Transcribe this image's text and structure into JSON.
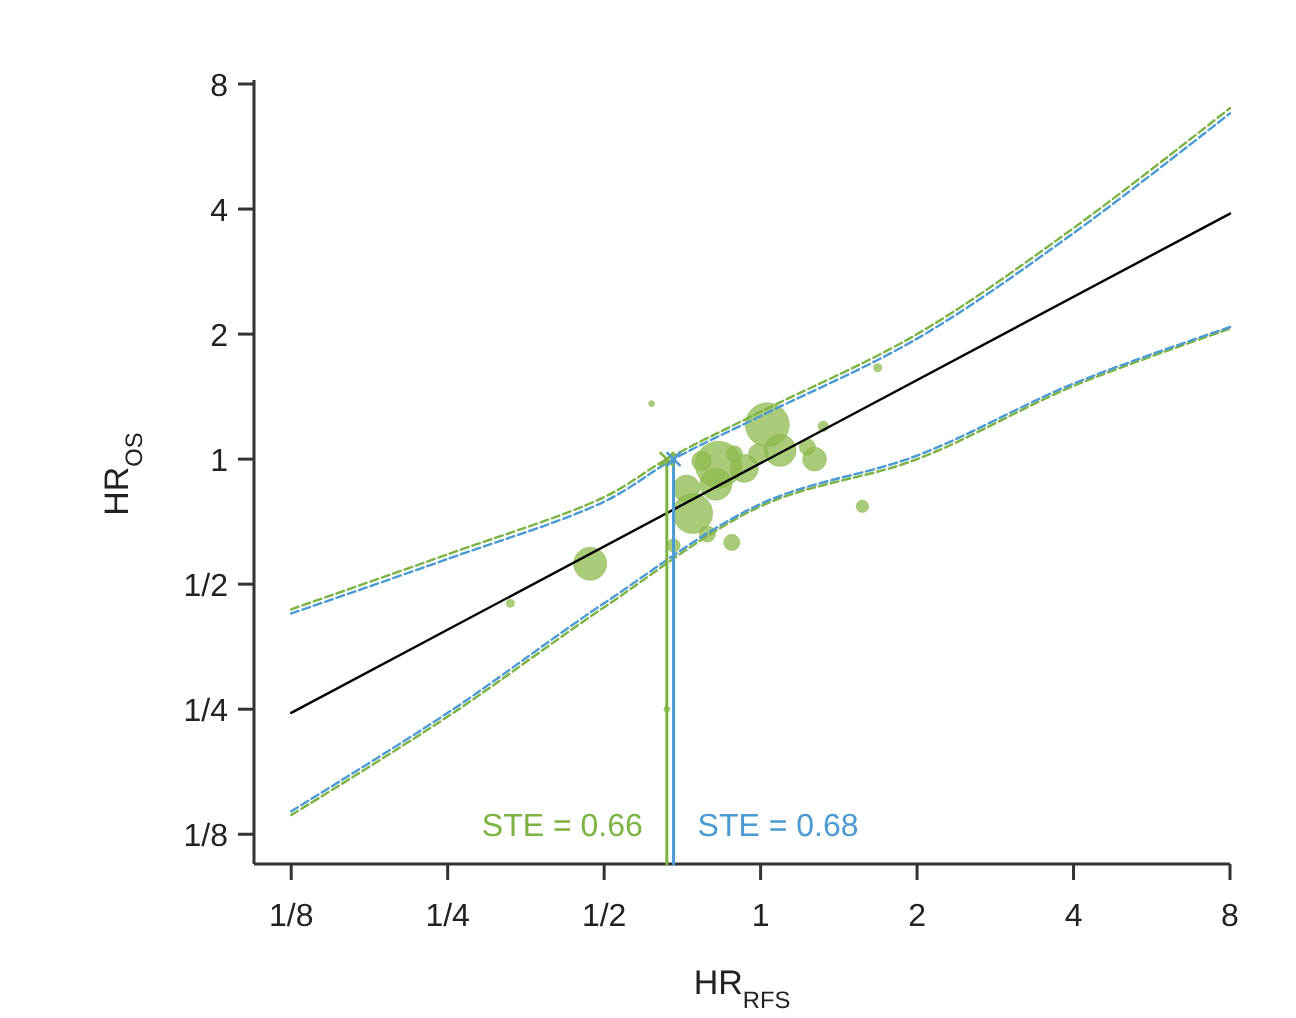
{
  "chart_data": {
    "type": "bubble",
    "xlabel": "HR$_{RFS}$",
    "ylabel": "HR$_{OS}$",
    "log": "xy",
    "grid": false,
    "xlim": [
      0.106,
      8
    ],
    "ylim": [
      0.106,
      8
    ],
    "xticks": [
      {
        "value": 0.125,
        "label": "1/8"
      },
      {
        "value": 0.25,
        "label": "1/4"
      },
      {
        "value": 0.5,
        "label": "1/2"
      },
      1,
      2,
      4,
      8
    ],
    "yticks": [
      {
        "value": 0.125,
        "label": "1/8"
      },
      {
        "value": 0.25,
        "label": "1/4"
      },
      {
        "value": 0.5,
        "label": "1/2"
      },
      1,
      2,
      4,
      8
    ],
    "series": [
      {
        "color": "#8dba4e",
        "x": [
          0.617,
          1.68,
          0.47,
          0.33,
          0.74,
          0.72,
          0.68,
          0.79,
          0.88,
          0.83,
          0.82,
          0.93,
          1.03,
          1.09,
          1.27,
          1.23,
          1.32,
          1.57,
          0.77,
          0.89,
          0.99,
          0.66
        ],
        "values": [
          1.36,
          1.66,
          0.56,
          0.45,
          0.74,
          0.85,
          0.62,
          0.66,
          0.63,
          0.97,
          0.87,
          0.95,
          1.21,
          1.05,
          1.0,
          1.07,
          1.2,
          0.77,
          0.99,
          1.03,
          1.03,
          0.25
        ],
        "sizes": [
          0.016,
          0.03,
          0.5,
          0.03,
          0.73,
          0.33,
          0.08,
          0.12,
          0.12,
          1,
          0.47,
          0.36,
          0.88,
          0.47,
          0.26,
          0.12,
          0.05,
          0.07,
          0.18,
          0.12,
          0.18,
          0.016
        ]
      },
      {
        "type": "line",
        "color": "#000000",
        "line_style": "solid",
        "x": [
          0.125,
          8
        ],
        "values": [
          0.245,
          3.9
        ]
      },
      {
        "type": "line",
        "color": "#7cb342",
        "line_style": "dashed",
        "x": [
          0.125,
          0.25,
          0.5,
          0.66,
          1,
          2,
          4,
          8
        ],
        "values": [
          0.435,
          0.59,
          0.81,
          1.0,
          1.3,
          2.0,
          3.6,
          7.0
        ]
      },
      {
        "type": "line",
        "color": "#4a9ad4",
        "line_style": "dashed",
        "x": [
          0.125,
          0.25,
          0.5,
          0.68,
          1,
          2,
          4,
          8
        ],
        "values": [
          0.425,
          0.575,
          0.79,
          1.0,
          1.27,
          1.95,
          3.5,
          6.8
        ]
      },
      {
        "type": "line",
        "color": "#7cb342",
        "line_style": "dashed",
        "x": [
          0.125,
          0.25,
          0.5,
          1,
          2,
          4,
          8
        ],
        "values": [
          0.139,
          0.24,
          0.44,
          0.77,
          1.0,
          1.5,
          2.06
        ]
      },
      {
        "type": "line",
        "color": "#4a9ad4",
        "line_style": "dashed",
        "x": [
          0.125,
          0.25,
          0.5,
          1,
          2,
          4,
          8
        ],
        "values": [
          0.142,
          0.245,
          0.45,
          0.78,
          1.02,
          1.52,
          2.08
        ]
      },
      {
        "type": "line",
        "name": "STE = 0.66",
        "color": "#7cb342",
        "line_style": "solid",
        "x": [
          0.66,
          0.66
        ],
        "values": [
          0.106,
          1.0
        ]
      },
      {
        "type": "line",
        "name": "STE = 0.68",
        "color": "#4a9ad4",
        "line_style": "solid",
        "x": [
          0.68,
          0.68
        ],
        "values": [
          0.106,
          1.0
        ]
      },
      {
        "type": "scatter",
        "marker": "cross",
        "color": "#7cb342",
        "x": [
          0.66
        ],
        "values": [
          1.0
        ]
      },
      {
        "type": "scatter",
        "marker": "cross",
        "color": "#4a9ad4",
        "x": [
          0.68
        ],
        "values": [
          1.0
        ]
      }
    ]
  }
}
